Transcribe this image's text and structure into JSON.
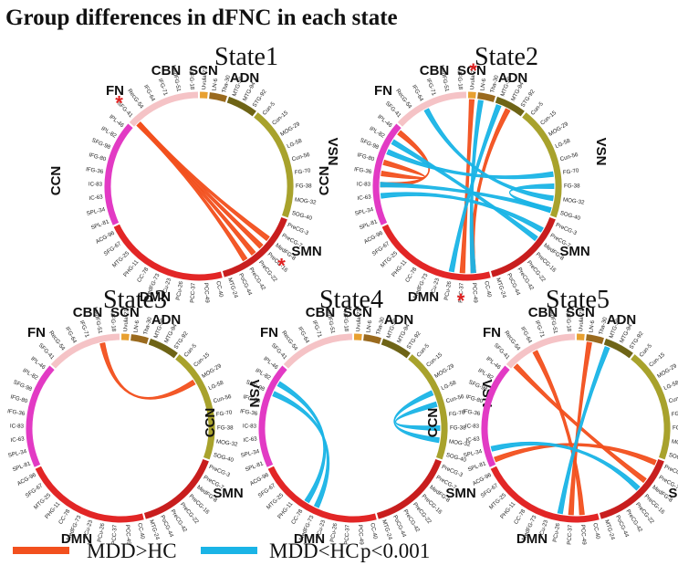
{
  "title": "Group differences in dFNC in each state",
  "colors": {
    "increase": "#f2501e",
    "decrease": "#1ab4e6",
    "star": "#e02020"
  },
  "legend": {
    "increase": "MDD>HC",
    "decrease": "MDD<HC",
    "pvalue": "p<0.001"
  },
  "chart_data": {
    "type": "chord",
    "networks": [
      {
        "id": "CBN",
        "label": "CBN",
        "color": "#e8a030",
        "nodes": [
          "Uvula-21"
        ]
      },
      {
        "id": "SCN",
        "label": "SCN",
        "color": "#9a6a1e",
        "nodes": [
          "LN-6",
          "Tha-30"
        ]
      },
      {
        "id": "ADN",
        "label": "ADN",
        "color": "#6e6416",
        "nodes": [
          "MTG-59",
          "MTG-94",
          "STG-92"
        ]
      },
      {
        "id": "VSN",
        "label": "VSN",
        "color": "#a8a22c",
        "nodes": [
          "Cun-5",
          "Cun-15",
          "MOG-29",
          "LG-58",
          "Cun-56",
          "FG-70",
          "FG-38",
          "MOG-32",
          "SOG-40"
        ]
      },
      {
        "id": "SMN",
        "label": "SMN",
        "color": "#c81e1e",
        "nodes": [
          "PreCG-3",
          "PreCG-7",
          "MedFG-8",
          "PreCG-16",
          "PreCG-22",
          "PreCG-42",
          "PoCG-44",
          "MTG-24"
        ]
      },
      {
        "id": "DMN",
        "label": "DMN",
        "color": "#e22626",
        "nodes": [
          "CC-40",
          "PCC-49",
          "PCC-37",
          "PCu-26",
          "PCu-23",
          "MedFG-73",
          "CC-78",
          "PHG-11",
          "MTG-25",
          "SFG-67",
          "ACG-96"
        ]
      },
      {
        "id": "CCN",
        "label": "CCN",
        "color": "#e23ac4",
        "nodes": [
          "SPL-81",
          "SPL-34",
          "IC-63",
          "IC-83",
          "IFG-36",
          "IFG-80",
          "SFG-98",
          "IPL-82",
          "IPL-46"
        ]
      },
      {
        "id": "FN",
        "label": "FN",
        "color": "#f5c3c6",
        "nodes": [
          "SFG-41",
          "RecG-54",
          "IFG-64",
          "IFG-71",
          "MedFG-51",
          "MFG-18"
        ]
      }
    ],
    "states": [
      {
        "name": "State1",
        "increase": [
          [
            "SFG-41",
            "MedFG-8"
          ],
          [
            "SFG-41",
            "PreCG-16"
          ],
          [
            "SFG-41",
            "PreCG-22"
          ],
          [
            "SFG-41",
            "PreCG-42"
          ]
        ],
        "decrease": [],
        "starred_nodes": [
          "SFG-41",
          "PreCG-16"
        ]
      },
      {
        "name": "State2",
        "increase": [
          [
            "Uvula-21",
            "PCC-37"
          ],
          [
            "MTG-94",
            "PCC-49"
          ],
          [
            "IFG-80",
            "IFG-36"
          ],
          [
            "IPL-46",
            "IC-83"
          ]
        ],
        "decrease": [
          [
            "SFG-98",
            "FG-70"
          ],
          [
            "IPL-82",
            "MedFG-8"
          ],
          [
            "IFG-64",
            "MOG-32"
          ],
          [
            "IC-83",
            "SOG-40"
          ],
          [
            "LN-6",
            "PCC-49"
          ],
          [
            "MTG-59",
            "PCu-26"
          ],
          [
            "IC-63",
            "PreCG-7"
          ],
          [
            "FG-38",
            "SOG-40"
          ]
        ],
        "starred_nodes": [
          "Uvula-21",
          "PCC-37"
        ]
      },
      {
        "name": "State3",
        "increase": [
          [
            "MedFG-51",
            "MOG-29"
          ]
        ],
        "decrease": [],
        "starred_nodes": []
      },
      {
        "name": "State4",
        "increase": [],
        "decrease": [
          [
            "IPL-82",
            "CC-78"
          ],
          [
            "SFG-98",
            "MedFG-73"
          ],
          [
            "Cun-56",
            "FG-38"
          ],
          [
            "LG-58",
            "MOG-32"
          ]
        ],
        "starred_nodes": []
      },
      {
        "name": "State5",
        "increase": [
          [
            "SFG-41",
            "MedFG-8"
          ],
          [
            "IFG-64",
            "PCC-49"
          ],
          [
            "LN-6",
            "PCC-37"
          ],
          [
            "SPL-81",
            "PreCG-3"
          ]
        ],
        "decrease": [
          [
            "MTG-59",
            "PCu-26"
          ],
          [
            "SPL-34",
            "PreCG-16"
          ]
        ],
        "starred_nodes": []
      }
    ]
  }
}
